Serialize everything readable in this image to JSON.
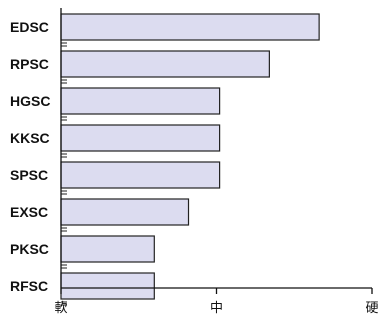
{
  "chart_data": {
    "type": "bar",
    "orientation": "horizontal",
    "categories": [
      "EDSC",
      "RPSC",
      "HGSC",
      "KKSC",
      "SPSC",
      "EXSC",
      "PKSC",
      "RFSC"
    ],
    "values": [
      0.83,
      0.67,
      0.51,
      0.51,
      0.51,
      0.41,
      0.3,
      0.3
    ],
    "xlim": [
      0,
      1
    ],
    "x_ticks": [
      {
        "value": 0,
        "label": "軟"
      },
      {
        "value": 0.5,
        "label": "中"
      },
      {
        "value": 1,
        "label": "硬"
      }
    ],
    "title": "",
    "xlabel": "",
    "ylabel": "",
    "grid": false,
    "bar_fill": "#dcdcf0",
    "bar_stroke": "#222222"
  }
}
